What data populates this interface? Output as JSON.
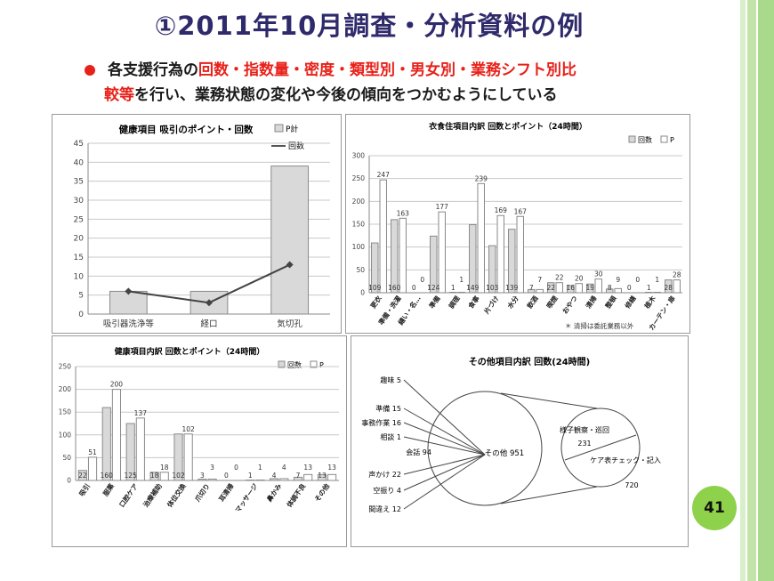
{
  "slide": {
    "title": "①2011年10月調査・分析資料の例",
    "line1_black": "各支援行為の",
    "line1_red": "回数・指数量・密度・類型別・男女別・業務シフト別比",
    "line2_red": "較等",
    "line2_black": "を行い、業務状態の変化や今後の傾向をつかむようにしている",
    "page_number": "41",
    "colors": {
      "title": "#2f2a6b",
      "accent_red": "#e8211a",
      "badge": "#8ed14a",
      "stripe": "#bfe3a3"
    }
  },
  "chart_data": [
    {
      "type": "bar",
      "title": "健康項目 吸引のポイント・回数",
      "categories": [
        "吸引器洗浄等",
        "経口",
        "気切孔"
      ],
      "series": [
        {
          "name": "P計",
          "kind": "bar",
          "values": [
            6,
            6,
            39
          ]
        },
        {
          "name": "回数",
          "kind": "line",
          "values": [
            6,
            3,
            13
          ]
        }
      ],
      "yticks": [
        "0",
        "5",
        "10",
        "15",
        "20",
        "25",
        "30",
        "35",
        "40",
        "45"
      ],
      "ylim": [
        0,
        45
      ],
      "grid": true,
      "legend": "top-right"
    },
    {
      "type": "bar",
      "title": "衣食住項目内訳 回数とポイント（24時間）",
      "categories": [
        "更衣",
        "準備・洗濯",
        "繕い・名…",
        "準備",
        "調理",
        "食事",
        "片づけ",
        "水分",
        "飲酒",
        "喫煙",
        "おやつ",
        "清掃",
        "整頓",
        "修繕",
        "植木",
        "カーテン・扉"
      ],
      "series": [
        {
          "name": "回数",
          "values": [
            109,
            160,
            0,
            124,
            1,
            149,
            103,
            139,
            7,
            22,
            16,
            19,
            8,
            0,
            1,
            28
          ]
        },
        {
          "name": "P",
          "values": [
            247,
            163,
            0,
            177,
            1,
            239,
            169,
            167,
            7,
            22,
            20,
            30,
            9,
            0,
            1,
            28
          ]
        }
      ],
      "yticks": [
        "0",
        "50",
        "100",
        "150",
        "200",
        "250",
        "300"
      ],
      "ylim": [
        0,
        300
      ],
      "grid": true,
      "legend": "top-right",
      "note": "＊ 清掃は委託業務以外"
    },
    {
      "type": "bar",
      "title": "健康項目内訳 回数とポイント（24時間）",
      "categories": [
        "吸引",
        "服薬",
        "口腔ケア",
        "治療補助",
        "体位交換",
        "爪切り",
        "耳清掃",
        "マッサージ",
        "鼻かみ",
        "体調不良",
        "その他"
      ],
      "series": [
        {
          "name": "回数",
          "values": [
            22,
            160,
            125,
            18,
            102,
            3,
            0,
            1,
            4,
            7,
            13
          ]
        },
        {
          "name": "P",
          "values": [
            51,
            200,
            137,
            18,
            102,
            3,
            0,
            1,
            4,
            13,
            13
          ]
        }
      ],
      "yticks": [
        "0",
        "50",
        "100",
        "150",
        "200",
        "250"
      ],
      "ylim": [
        0,
        250
      ],
      "grid": true,
      "legend": "top-right"
    },
    {
      "type": "pie",
      "title": "その他項目内訳 回数(24時間)",
      "slices": [
        {
          "label": "趣味",
          "value": 5
        },
        {
          "label": "準備",
          "value": 15
        },
        {
          "label": "事務作業",
          "value": 16
        },
        {
          "label": "相談",
          "value": 1
        },
        {
          "label": "会話",
          "value": 94
        },
        {
          "label": "声かけ",
          "value": 22
        },
        {
          "label": "空振り",
          "value": 4
        },
        {
          "label": "間違え",
          "value": 12
        },
        {
          "label": "その他",
          "value": 951
        }
      ],
      "sub_pie": {
        "parent": "その他",
        "slices": [
          {
            "label": "様子観察・巡回",
            "value": 231
          },
          {
            "label": "ケア表チェック・記入",
            "value": 720
          }
        ]
      }
    }
  ]
}
